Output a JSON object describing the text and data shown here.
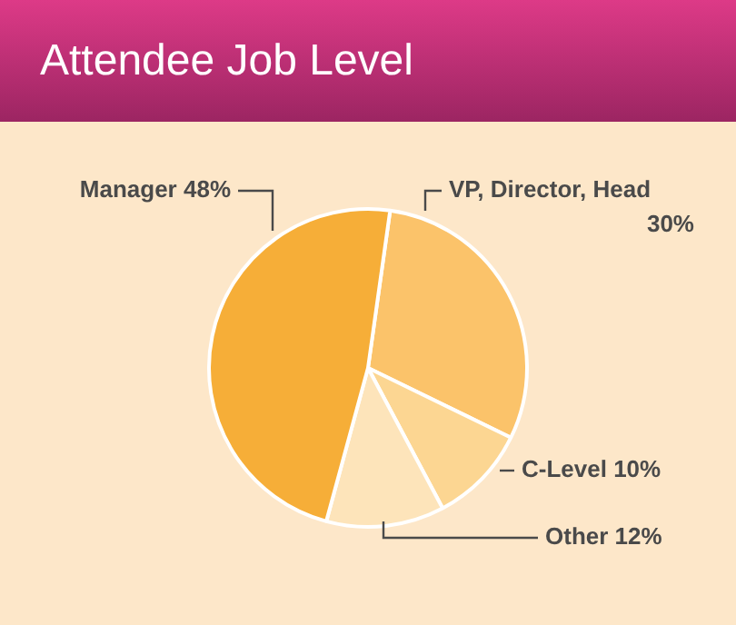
{
  "chart_data": {
    "type": "pie",
    "title": "Attendee Job Level",
    "categories": [
      "VP, Director, Head",
      "C-Level",
      "Other",
      "Manager"
    ],
    "values": [
      30,
      10,
      12,
      48
    ],
    "value_labels": [
      "30%",
      "10%",
      "12%",
      "48%"
    ],
    "colors": [
      "#fbc36a",
      "#fcd692",
      "#fde4ba",
      "#f6ae38"
    ],
    "legend": false
  }
}
